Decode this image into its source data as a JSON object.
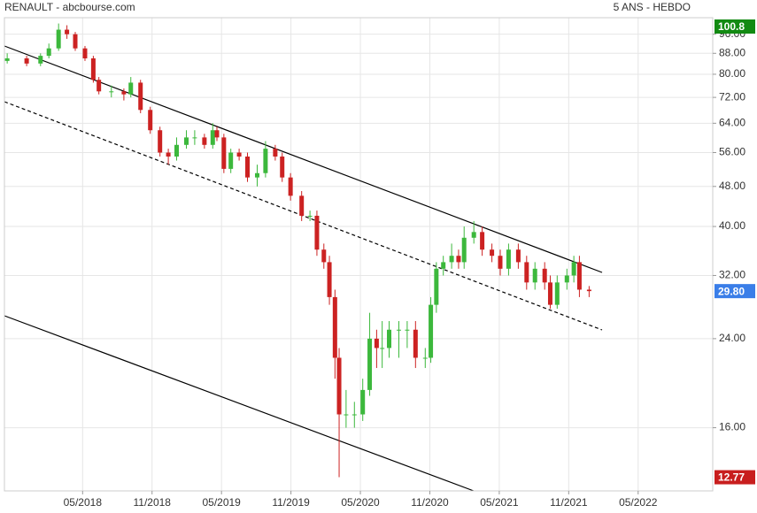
{
  "chart_data": {
    "type": "candlestick",
    "title": "RENAULT - abcbourse.com",
    "subtitle": "5 ANS - HEBDO",
    "log_scale": true,
    "grid": true,
    "up_color": "#3cb83c",
    "down_color": "#cc2222",
    "x": [
      2017.79,
      2017.93,
      2018.03,
      2018.09,
      2018.16,
      2018.22,
      2018.28,
      2018.35,
      2018.41,
      2018.45,
      2018.54,
      2018.63,
      2018.68,
      2018.75,
      2018.82,
      2018.89,
      2018.95,
      2019.01,
      2019.08,
      2019.14,
      2019.21,
      2019.27,
      2019.3,
      2019.35,
      2019.4,
      2019.46,
      2019.52,
      2019.59,
      2019.65,
      2019.72,
      2019.77,
      2019.83,
      2019.91,
      2019.97,
      2020.02,
      2020.07,
      2020.11,
      2020.15,
      2020.18,
      2020.23,
      2020.29,
      2020.35,
      2020.4,
      2020.45,
      2020.49,
      2020.54,
      2020.61,
      2020.67,
      2020.73,
      2020.8,
      2020.84,
      2020.88,
      2020.93,
      2020.99,
      2021.04,
      2021.08,
      2021.15,
      2021.21,
      2021.28,
      2021.34,
      2021.4,
      2021.47,
      2021.53,
      2021.59,
      2021.66,
      2021.7,
      2021.75,
      2021.82,
      2021.87,
      2021.91,
      2021.98
    ],
    "open": [
      85,
      86,
      84,
      87,
      90,
      98,
      96,
      90,
      86,
      78,
      74,
      74,
      73,
      77,
      68,
      62,
      56,
      55,
      58,
      60,
      60,
      58,
      62,
      60,
      52,
      56,
      55,
      50,
      51,
      57,
      55,
      50,
      46,
      42,
      42,
      36,
      34,
      29,
      22,
      17,
      17,
      17,
      19,
      24,
      23,
      23,
      25,
      25,
      25,
      22,
      22,
      28,
      33,
      34,
      35,
      34,
      38,
      39,
      36,
      35,
      33,
      36,
      34,
      31,
      33,
      31,
      28,
      31,
      32,
      34,
      30
    ],
    "high": [
      88,
      87,
      88,
      92,
      100.8,
      100,
      97,
      91,
      87,
      79,
      76,
      75,
      79,
      78,
      69,
      63,
      57,
      60,
      62,
      62,
      61,
      64,
      63,
      61,
      57,
      57,
      56,
      53,
      59,
      58,
      56,
      51,
      47,
      43,
      43,
      37,
      35,
      30,
      23,
      19,
      18,
      20,
      27,
      25,
      26,
      26,
      26,
      26,
      26,
      23,
      29,
      34,
      35,
      37,
      36,
      40,
      41,
      40,
      37,
      36,
      37,
      37,
      35,
      34,
      34,
      32,
      32,
      33,
      35,
      35,
      30.5
    ],
    "low": [
      84,
      83,
      83,
      86,
      89,
      94,
      89,
      85,
      77,
      73,
      72,
      71,
      72,
      67,
      61,
      55,
      53,
      54,
      57,
      58,
      57,
      57,
      59,
      51,
      51,
      54,
      49,
      48,
      50,
      54,
      49,
      45,
      41,
      41,
      35,
      33,
      28,
      20,
      12.77,
      16,
      16,
      16.5,
      18.5,
      21,
      21,
      22,
      22,
      23,
      21,
      21,
      21.5,
      27,
      32,
      33,
      33,
      33,
      37,
      35,
      34,
      32,
      32,
      33,
      30,
      30,
      30,
      27.5,
      27.5,
      30,
      31,
      29,
      29
    ],
    "close": [
      86,
      84,
      87,
      90,
      98,
      96,
      90,
      86,
      78,
      74,
      74,
      73,
      77,
      68,
      62,
      56,
      55,
      58,
      60,
      60,
      58,
      62,
      60,
      52,
      56,
      55,
      50,
      51,
      57,
      55,
      50,
      46,
      42,
      42,
      36,
      34,
      29,
      22,
      17,
      17,
      17,
      19,
      24,
      23,
      23,
      25,
      25,
      25,
      22,
      22,
      28,
      33,
      34,
      35,
      34,
      38,
      39,
      36,
      35,
      33,
      36,
      34,
      31,
      33,
      31,
      28,
      31,
      32,
      34,
      30,
      29.8
    ],
    "xlim": [
      2017.77,
      2022.87
    ],
    "xticks": [
      {
        "value": 2018.333,
        "label": "05/2018"
      },
      {
        "value": 2018.833,
        "label": "11/2018"
      },
      {
        "value": 2019.333,
        "label": "05/2019"
      },
      {
        "value": 2019.833,
        "label": "11/2019"
      },
      {
        "value": 2020.333,
        "label": "05/2020"
      },
      {
        "value": 2020.833,
        "label": "11/2020"
      },
      {
        "value": 2021.333,
        "label": "05/2021"
      },
      {
        "value": 2021.833,
        "label": "11/2021"
      },
      {
        "value": 2022.333,
        "label": "05/2022"
      }
    ],
    "ylim": [
      12,
      103.5
    ],
    "yticks": [
      {
        "value": 16,
        "label": "16.00"
      },
      {
        "value": 24,
        "label": "24.00"
      },
      {
        "value": 32,
        "label": "32.00"
      },
      {
        "value": 40,
        "label": "40.00"
      },
      {
        "value": 48,
        "label": "48.00"
      },
      {
        "value": 56,
        "label": "56.00"
      },
      {
        "value": 64,
        "label": "64.00"
      },
      {
        "value": 72,
        "label": "72.00"
      },
      {
        "value": 80,
        "label": "80.00"
      },
      {
        "value": 88,
        "label": "88.00"
      },
      {
        "value": 96,
        "label": "96.00"
      }
    ],
    "price_markers": [
      {
        "value": 100.8,
        "label": "100.8",
        "color": "#128a12"
      },
      {
        "value": 29.8,
        "label": "29.80",
        "color": "#3a7ee8"
      },
      {
        "value": 12.77,
        "label": "12.77",
        "color": "#c81e1e"
      }
    ]
  }
}
